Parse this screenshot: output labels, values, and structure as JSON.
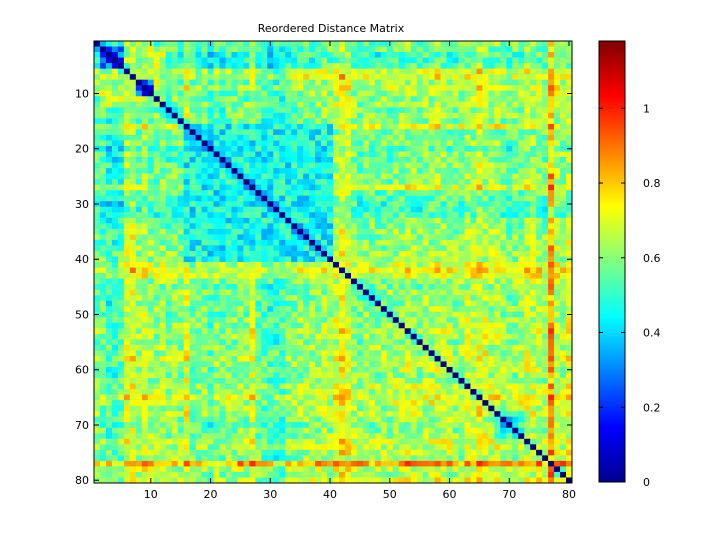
{
  "chart_data": {
    "type": "heatmap",
    "title": "Reordered Distance Matrix",
    "xlabel": "",
    "ylabel": "",
    "n": 80,
    "xlim": [
      0.5,
      80.5
    ],
    "ylim": [
      0.5,
      80.5
    ],
    "y_direction": "reversed",
    "x_ticks": [
      10,
      20,
      30,
      40,
      50,
      60,
      70,
      80
    ],
    "y_ticks": [
      10,
      20,
      30,
      40,
      50,
      60,
      70,
      80
    ],
    "x_tick_labels": [
      "10",
      "20",
      "30",
      "40",
      "50",
      "60",
      "70",
      "80"
    ],
    "y_tick_labels": [
      "10",
      "20",
      "30",
      "40",
      "50",
      "60",
      "70",
      "80"
    ],
    "colormap": "jet",
    "colorbar": {
      "range": [
        0,
        1.18
      ],
      "ticks": [
        0,
        0.2,
        0.4,
        0.6,
        0.8,
        1
      ],
      "tick_labels": [
        "0",
        "0.2",
        "0.4",
        "0.6",
        "0.8",
        "1"
      ]
    },
    "diagonal_value": 0,
    "base_level": 0.62,
    "row_column_levels": [
      0.55,
      0.5,
      0.4,
      0.4,
      0.45,
      0.72,
      0.78,
      0.6,
      0.7,
      0.6,
      0.58,
      0.62,
      0.55,
      0.6,
      0.55,
      0.75,
      0.5,
      0.5,
      0.55,
      0.45,
      0.55,
      0.5,
      0.55,
      0.55,
      0.6,
      0.55,
      0.72,
      0.5,
      0.45,
      0.4,
      0.4,
      0.42,
      0.5,
      0.55,
      0.6,
      0.6,
      0.58,
      0.6,
      0.65,
      0.6,
      0.72,
      0.82,
      0.75,
      0.62,
      0.55,
      0.62,
      0.6,
      0.58,
      0.6,
      0.6,
      0.62,
      0.65,
      0.7,
      0.65,
      0.6,
      0.65,
      0.68,
      0.7,
      0.68,
      0.65,
      0.6,
      0.62,
      0.72,
      0.68,
      0.8,
      0.72,
      0.65,
      0.68,
      0.6,
      0.55,
      0.6,
      0.65,
      0.72,
      0.7,
      0.68,
      0.62,
      1.1,
      0.72,
      0.65,
      0.75
    ],
    "blocks": [
      {
        "rows": [
          2,
          5
        ],
        "cols": [
          2,
          5
        ],
        "value": 0.3
      },
      {
        "rows": [
          8,
          10
        ],
        "cols": [
          8,
          10
        ],
        "value": 0.3
      },
      {
        "rows": [
          2,
          12
        ],
        "cols": [
          2,
          12
        ],
        "value": 0.65
      },
      {
        "rows": [
          16,
          40
        ],
        "cols": [
          16,
          40
        ],
        "value": 0.45
      },
      {
        "rows": [
          28,
          34
        ],
        "cols": [
          28,
          34
        ],
        "value": 0.3
      },
      {
        "rows": [
          68,
          72
        ],
        "cols": [
          68,
          72
        ],
        "value": 0.5
      }
    ]
  }
}
